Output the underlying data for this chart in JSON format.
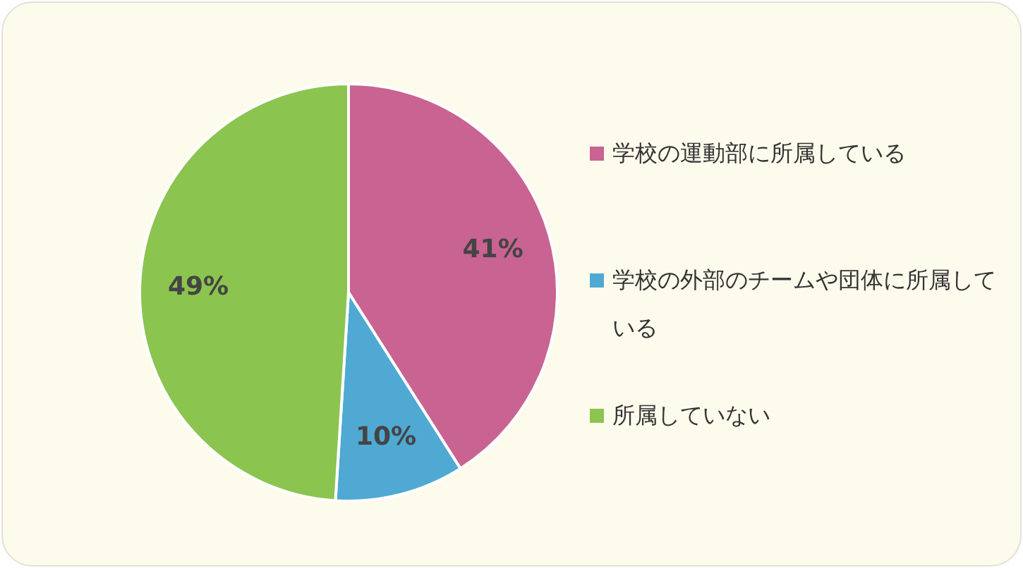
{
  "chart_data": {
    "type": "pie",
    "categories": [
      "学校の運動部に所属している",
      "学校の外部のチームや団体に所属している",
      "所属していない"
    ],
    "values": [
      41,
      10,
      49
    ],
    "colors": [
      "#c96392",
      "#4fa9d3",
      "#8cc450"
    ],
    "value_labels": [
      "41%",
      "10%",
      "49%"
    ],
    "legend": "right"
  }
}
